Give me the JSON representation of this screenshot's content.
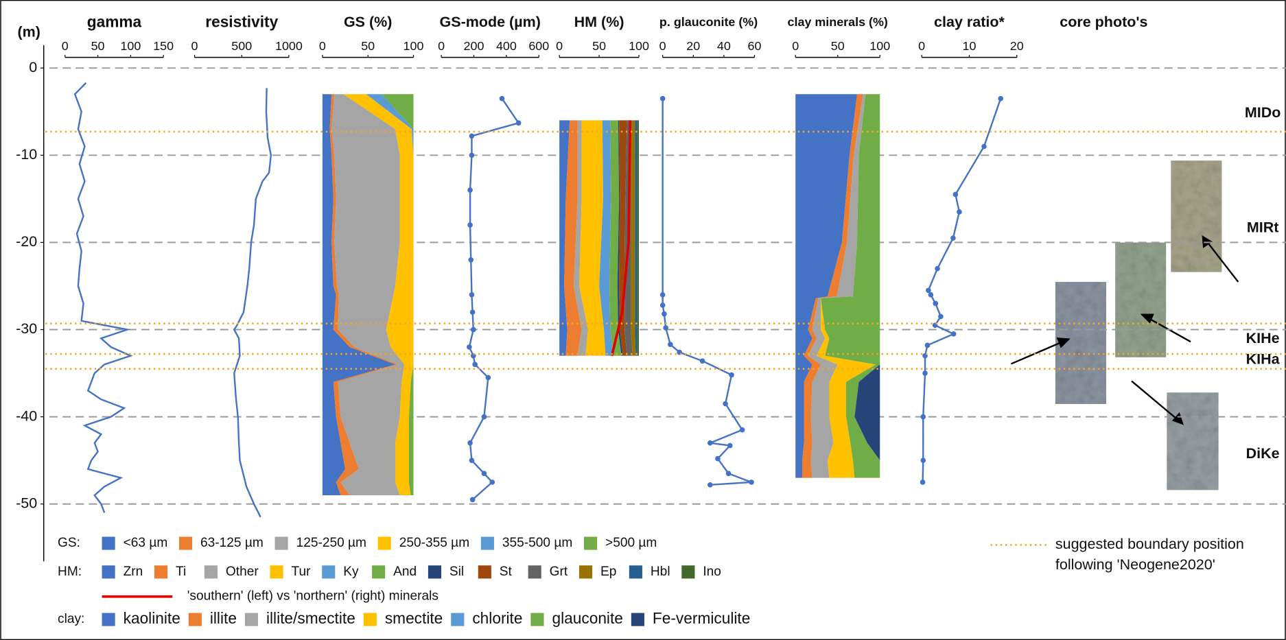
{
  "chart_data": {
    "type": "well-log",
    "ylabel": "(m)",
    "ylim": [
      -56.5,
      2.5
    ],
    "yticks": [
      0,
      -10,
      -20,
      -30,
      -40,
      -50
    ],
    "grid": true,
    "tracks": [
      {
        "type": "line",
        "title": "gamma",
        "xlim": [
          0,
          150
        ],
        "xticks": [
          0,
          50,
          100,
          150
        ],
        "color": "#4472c4",
        "markers": false,
        "depth": [
          -1.7,
          -3,
          -5,
          -7,
          -9,
          -11,
          -13,
          -15,
          -17,
          -19,
          -21,
          -23,
          -25,
          -27,
          -29,
          -30,
          -31,
          -32,
          -33,
          -34,
          -35,
          -36,
          -37,
          -38,
          -39,
          -40,
          -41,
          -42,
          -43,
          -44,
          -45,
          -46,
          -47,
          -48,
          -49,
          -50,
          -51
        ],
        "values": [
          32,
          15,
          25,
          20,
          30,
          22,
          30,
          20,
          28,
          18,
          25,
          22,
          20,
          28,
          25,
          95,
          55,
          70,
          100,
          60,
          45,
          40,
          35,
          55,
          90,
          70,
          30,
          55,
          45,
          50,
          40,
          35,
          85,
          60,
          45,
          55,
          60
        ]
      },
      {
        "type": "line",
        "title": "resistivity",
        "xlim": [
          0,
          1000
        ],
        "xticks": [
          0,
          500,
          1000
        ],
        "color": "#4472c4",
        "markers": false,
        "depth": [
          -2.3,
          -5,
          -8,
          -10,
          -12,
          -13,
          -15,
          -18,
          -20,
          -23,
          -25,
          -28,
          -29.5,
          -30,
          -31,
          -33,
          -35,
          -38,
          -40,
          -43,
          -45,
          -48,
          -50,
          -51.5
        ],
        "values": [
          765,
          760,
          775,
          810,
          790,
          720,
          650,
          630,
          600,
          580,
          560,
          520,
          450,
          420,
          470,
          480,
          420,
          440,
          460,
          470,
          480,
          550,
          630,
          700
        ]
      },
      {
        "type": "stacked-area",
        "title": "GS (%)",
        "legend_label": "GS:",
        "xlim": [
          0,
          100
        ],
        "xticks": [
          0,
          50,
          100
        ],
        "depth": [
          -3,
          -7,
          -10,
          -15,
          -20,
          -25,
          -26,
          -30,
          -32,
          -34,
          -36,
          -40,
          -43,
          -46,
          -47.5,
          -49
        ],
        "series": [
          {
            "name": "<63 µm",
            "color": "#4472c4",
            "values": [
              10,
              8,
              10,
              12,
              10,
              12,
              15,
              12,
              30,
              80,
              12,
              15,
              20,
              25,
              15,
              20
            ]
          },
          {
            "name": "63-125 µm",
            "color": "#ed7d31",
            "values": [
              3,
              2,
              3,
              3,
              3,
              4,
              3,
              5,
              5,
              3,
              5,
              5,
              10,
              15,
              5,
              10
            ]
          },
          {
            "name": "125-250 µm",
            "color": "#a5a5a5",
            "values": [
              10,
              70,
              72,
              70,
              72,
              64,
              60,
              53,
              40,
              7,
              70,
              65,
              50,
              40,
              60,
              55
            ]
          },
          {
            "name": "250-355 µm",
            "color": "#ffc000",
            "values": [
              25,
              18,
              15,
              15,
              15,
              20,
              22,
              30,
              25,
              10,
              10,
              10,
              15,
              15,
              15,
              12
            ]
          },
          {
            "name": "355-500 µm",
            "color": "#5b9bd5",
            "values": [
              17,
              2,
              0,
              0,
              0,
              0,
              0,
              0,
              0,
              0,
              0,
              0,
              0,
              0,
              0,
              0
            ]
          },
          {
            "name": ">500 µm",
            "color": "#70ad47",
            "values": [
              35,
              0,
              0,
              0,
              0,
              0,
              0,
              0,
              0,
              0,
              3,
              5,
              5,
              5,
              5,
              3
            ]
          }
        ]
      },
      {
        "type": "line",
        "title": "GS-mode (µm)",
        "xlim": [
          0,
          600
        ],
        "xticks": [
          0,
          200,
          400,
          600
        ],
        "color": "#4472c4",
        "markers": true,
        "depth": [
          -3.5,
          -6.3,
          -7.8,
          -10,
          -14,
          -18,
          -22,
          -26,
          -28,
          -30,
          -32,
          -33,
          -34,
          -35.5,
          -40,
          -43,
          -45,
          -46.5,
          -47.5,
          -49.5
        ],
        "values": [
          373,
          475,
          187,
          187,
          177,
          177,
          182,
          187,
          192,
          197,
          172,
          197,
          207,
          288,
          263,
          177,
          187,
          263,
          313,
          192
        ]
      },
      {
        "type": "stacked-area",
        "title": "HM (%)",
        "legend_label": "HM:",
        "xlim": [
          0,
          100
        ],
        "xticks": [
          0,
          50,
          100
        ],
        "depth": [
          -6,
          -15,
          -25,
          -30,
          -33
        ],
        "series": [
          {
            "name": "Zrn",
            "color": "#4472c4",
            "values": [
              13,
              8,
              6,
              10,
              8
            ]
          },
          {
            "name": "Ti",
            "color": "#ed7d31",
            "values": [
              10,
              15,
              12,
              18,
              15
            ]
          },
          {
            "name": "Other",
            "color": "#a5a5a5",
            "values": [
              5,
              5,
              7,
              8,
              10
            ]
          },
          {
            "name": "Tur",
            "color": "#ffc000",
            "values": [
              26,
              27,
              25,
              20,
              25
            ]
          },
          {
            "name": "Ky",
            "color": "#5b9bd5",
            "values": [
              10,
              10,
              13,
              8,
              10
            ]
          },
          {
            "name": "And",
            "color": "#70ad47",
            "values": [
              10,
              10,
              10,
              10,
              10
            ]
          },
          {
            "name": "Sil",
            "color": "#264478",
            "values": [
              1,
              1,
              2,
              2,
              2
            ]
          },
          {
            "name": "St",
            "color": "#9e480e",
            "values": [
              10,
              7,
              7,
              6,
              5
            ]
          },
          {
            "name": "Grt",
            "color": "#636363",
            "values": [
              5,
              7,
              8,
              8,
              7
            ]
          },
          {
            "name": "Ep",
            "color": "#997300",
            "values": [
              5,
              5,
              5,
              5,
              4
            ]
          },
          {
            "name": "Hbl",
            "color": "#255e91",
            "values": [
              3,
              3,
              3,
              3,
              2
            ]
          },
          {
            "name": "Ino",
            "color": "#43682b",
            "values": [
              2,
              2,
              2,
              2,
              2
            ]
          }
        ],
        "boundary_line": {
          "name": "'southern' (left) vs 'northern' (right) minerals",
          "color": "#e00000",
          "depth": [
            -6,
            -20,
            -28,
            -33
          ],
          "values": [
            89,
            87,
            79,
            66
          ]
        }
      },
      {
        "type": "line",
        "title": "p. glauconite (%)",
        "xlim": [
          0,
          60
        ],
        "xticks": [
          0,
          20,
          40,
          60
        ],
        "color": "#4472c4",
        "markers": true,
        "depth": [
          -3.5,
          -26,
          -27.2,
          -28.2,
          -29.8,
          -31.7,
          -32.6,
          -33.6,
          -35.2,
          -38.5,
          -41.5,
          -43,
          -43.3,
          -44.8,
          -46.5,
          -47.5,
          -47.8
        ],
        "values": [
          0,
          0,
          0,
          1,
          2,
          5,
          11,
          26,
          45,
          41,
          52,
          31,
          44,
          36,
          43,
          58,
          31
        ]
      },
      {
        "type": "stacked-area",
        "title": "clay minerals (%)",
        "legend_label": "clay:",
        "xlim": [
          0,
          100
        ],
        "xticks": [
          0,
          50,
          100
        ],
        "depth": [
          -3,
          -10,
          -20,
          -26.2,
          -26.4,
          -30,
          -31,
          -33,
          -34,
          -36,
          -40,
          -43,
          -45,
          -47
        ],
        "series": [
          {
            "name": "kaolinite",
            "color": "#4472c4",
            "values": [
              73,
              64,
              55,
              38,
              24,
              15,
              20,
              10,
              20,
              10,
              10,
              10,
              8,
              8
            ]
          },
          {
            "name": "illite",
            "color": "#ed7d31",
            "values": [
              7,
              5,
              6,
              11,
              3,
              5,
              5,
              5,
              10,
              10,
              8,
              10,
              10,
              12
            ]
          },
          {
            "name": "illite/smectite",
            "color": "#a5a5a5",
            "values": [
              3,
              6,
              12,
              19,
              3,
              10,
              10,
              10,
              20,
              20,
              22,
              25,
              20,
              20
            ]
          },
          {
            "name": "smectite",
            "color": "#ffc000",
            "values": [
              0,
              0,
              0,
              0,
              0,
              5,
              5,
              10,
              45,
              20,
              20,
              20,
              30,
              30
            ]
          },
          {
            "name": "chlorite",
            "color": "#5b9bd5",
            "values": [
              0,
              0,
              0,
              0,
              0,
              0,
              0,
              0,
              0,
              0,
              0,
              0,
              0,
              0
            ]
          },
          {
            "name": "glauconite",
            "color": "#70ad47",
            "values": [
              17,
              25,
              27,
              32,
              70,
              65,
              60,
              65,
              5,
              15,
              10,
              20,
              32,
              30
            ]
          },
          {
            "name": "Fe-vermiculite",
            "color": "#264478",
            "values": [
              0,
              0,
              0,
              0,
              0,
              0,
              0,
              0,
              0,
              25,
              30,
              15,
              0,
              0
            ]
          }
        ]
      },
      {
        "type": "line",
        "title": "clay ratio*",
        "xlim": [
          0,
          20
        ],
        "xticks": [
          0,
          10,
          20
        ],
        "color": "#4472c4",
        "markers": true,
        "depth": [
          -3.5,
          -9,
          -14.5,
          -16.5,
          -19.5,
          -23,
          -25.5,
          -26,
          -27,
          -28.5,
          -29.5,
          -30.5,
          -31.8,
          -33,
          -35,
          -40,
          -45,
          -47.5
        ],
        "values": [
          16.6,
          13.1,
          7.1,
          7.9,
          6.6,
          3.3,
          1.4,
          1.9,
          2.9,
          4,
          2.8,
          6.7,
          1.2,
          0.7,
          0.7,
          0.3,
          0.3,
          0.2
        ]
      }
    ],
    "boundaries": {
      "label": [
        "suggested boundary position",
        "following 'Neogene2020'"
      ],
      "color": "#f5a623",
      "depths": [
        -7.3,
        -29.3,
        -32.8,
        -34.5
      ]
    },
    "formations": [
      {
        "name": "MIDo",
        "depth": -5.2
      },
      {
        "name": "MIRt",
        "depth": -18.4
      },
      {
        "name": "KIHe",
        "depth": -31.1
      },
      {
        "name": "KIHa",
        "depth": -33.5
      },
      {
        "name": "DiKe",
        "depth": -44.3
      }
    ],
    "photos_title": "core photo's"
  }
}
